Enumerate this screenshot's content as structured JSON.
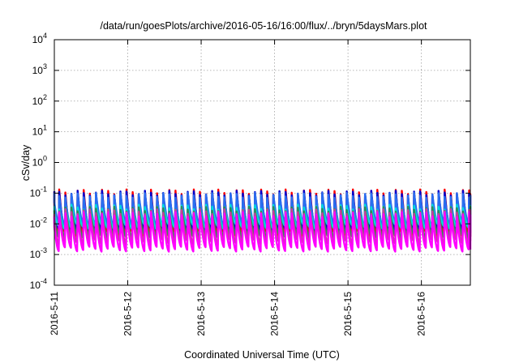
{
  "chart_data": {
    "type": "line",
    "title": "/data/run/goesPlots/archive/2016-05-16/16:00/flux/../bryn/5daysMars.plot",
    "xlabel": "Coordinated Universal Time (UTC)",
    "ylabel": "cSv/day",
    "y_scale": "log",
    "ylim": [
      0.0001,
      10000
    ],
    "xlim": [
      "2016-05-11 00:00",
      "2016-05-16 16:00"
    ],
    "x_ticks": [
      "2016-5-11",
      "2016-5-12",
      "2016-5-13",
      "2016-5-14",
      "2016-5-15",
      "2016-5-16"
    ],
    "y_ticks": [
      {
        "value": 0.0001,
        "base": "10",
        "exp": "-4"
      },
      {
        "value": 0.001,
        "base": "10",
        "exp": "-3"
      },
      {
        "value": 0.01,
        "base": "10",
        "exp": "-2"
      },
      {
        "value": 0.1,
        "base": "10",
        "exp": "-1"
      },
      {
        "value": 1,
        "base": "10",
        "exp": "0"
      },
      {
        "value": 10,
        "base": "10",
        "exp": "1"
      },
      {
        "value": 100,
        "base": "10",
        "exp": "2"
      },
      {
        "value": 1000,
        "base": "10",
        "exp": "3"
      },
      {
        "value": 10000,
        "base": "10",
        "exp": "4"
      }
    ],
    "grid": true,
    "sawtooth_period_hours": 2,
    "series": [
      {
        "color": "#ff0000",
        "peak": 0.11,
        "trough": 0.0045
      },
      {
        "color": "#0000cc",
        "peak": 0.1,
        "trough": 0.006
      },
      {
        "color": "#2a6ef0",
        "peak": 0.085,
        "trough": 0.009
      },
      {
        "color": "#00dcdc",
        "peak": 0.035,
        "trough": 0.008
      },
      {
        "color": "#2e8b57",
        "peak": 0.03,
        "trough": 0.004
      },
      {
        "color": "#c8409a",
        "peak": 0.025,
        "trough": 0.0025
      },
      {
        "color": "#ff00ff",
        "peak": 0.02,
        "trough": 0.0015
      }
    ]
  }
}
